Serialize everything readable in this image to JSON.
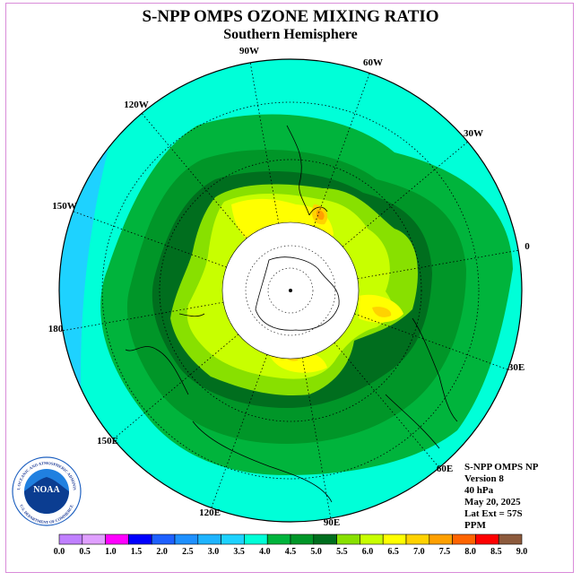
{
  "title": "S-NPP OMPS OZONE MIXING RATIO",
  "subtitle": "Southern Hemisphere",
  "longitude_labels": [
    "90W",
    "60W",
    "30W",
    "0",
    "30E",
    "60E",
    "90E",
    "120E",
    "150E",
    "180",
    "150W",
    "120W"
  ],
  "info": {
    "line1": "S-NPP OMPS NP",
    "line2": "Version 8",
    "line3": "40 hPa",
    "line4": "May 20, 2025",
    "line5": "Lat Ext = 57S",
    "line6": "PPM"
  },
  "colorbar": {
    "ticks": [
      "0.0",
      "0.5",
      "1.0",
      "1.5",
      "2.0",
      "2.5",
      "3.0",
      "3.5",
      "4.0",
      "4.5",
      "5.0",
      "5.5",
      "6.0",
      "6.5",
      "7.0",
      "7.5",
      "8.0",
      "8.5",
      "9.0"
    ],
    "colors": [
      "#c080ff",
      "#e0a0ff",
      "#ff00ff",
      "#0000ff",
      "#1e60ff",
      "#1e90ff",
      "#1eb4ff",
      "#1ed2ff",
      "#00ffd8",
      "#00b43c",
      "#009628",
      "#006e1e",
      "#88e000",
      "#c8ff00",
      "#ffff00",
      "#ffd200",
      "#ffa000",
      "#ff6400",
      "#ff0000",
      "#8c5a3c"
    ]
  },
  "logo": {
    "text": "NOAA",
    "ring_top": "NATIONAL OCEANIC AND ATMOSPHERIC ADMINISTRATION",
    "ring_bottom": "U.S. DEPARTMENT OF COMMERCE"
  },
  "colors": {
    "cyan": "#1ed2ff",
    "aqua": "#00ffd8",
    "light_green": "#00b43c",
    "mid_green": "#009628",
    "dark_green": "#006e1e",
    "lime": "#88e000",
    "yellow_green": "#c8ff00",
    "yellow": "#ffff00",
    "gold": "#ffd200",
    "orange": "#ffa000"
  }
}
